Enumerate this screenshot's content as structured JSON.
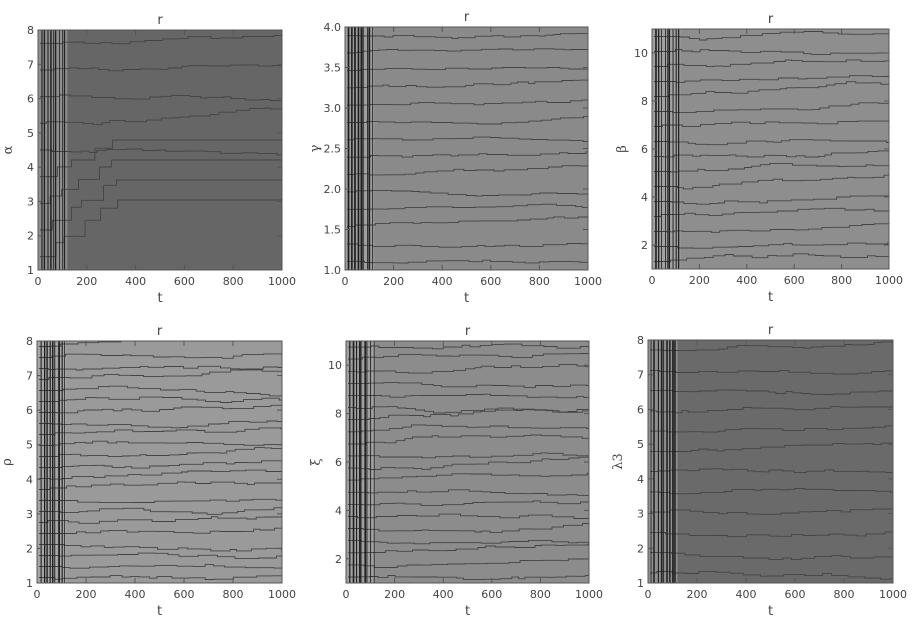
{
  "chart_data": [
    {
      "type": "heatmap",
      "title": "r",
      "xlabel": "t",
      "ylabel": "α",
      "xlim": [
        0,
        1000
      ],
      "ylim": [
        1,
        8
      ],
      "xticks": [
        "0",
        "200",
        "400",
        "600",
        "800",
        "1000"
      ],
      "yticks": [
        "1",
        "2",
        "3",
        "4",
        "5",
        "6",
        "7",
        "8"
      ]
    },
    {
      "type": "heatmap",
      "title": "r",
      "xlabel": "t",
      "ylabel": "γ",
      "xlim": [
        0,
        1000
      ],
      "ylim": [
        1,
        4
      ],
      "xticks": [
        "0",
        "200",
        "400",
        "600",
        "800",
        "1000"
      ],
      "yticks": [
        "1.0",
        "1.5",
        "2.0",
        "2.5",
        "3.0",
        "3.5",
        "4.0"
      ]
    },
    {
      "type": "heatmap",
      "title": "r",
      "xlabel": "t",
      "ylabel": "β",
      "xlim": [
        0,
        1000
      ],
      "ylim": [
        1,
        11
      ],
      "xticks": [
        "0",
        "200",
        "400",
        "600",
        "800",
        "1000"
      ],
      "yticks": [
        "2",
        "4",
        "6",
        "8",
        "10"
      ]
    },
    {
      "type": "heatmap",
      "title": "r",
      "xlabel": "t",
      "ylabel": "ρ",
      "xlim": [
        0,
        1000
      ],
      "ylim": [
        1,
        8
      ],
      "xticks": [
        "0",
        "200",
        "400",
        "600",
        "800",
        "1000"
      ],
      "yticks": [
        "1",
        "2",
        "3",
        "4",
        "5",
        "6",
        "7",
        "8"
      ]
    },
    {
      "type": "heatmap",
      "title": "r",
      "xlabel": "t",
      "ylabel": "ξ",
      "xlim": [
        0,
        1000
      ],
      "ylim": [
        1,
        11
      ],
      "xticks": [
        "0",
        "200",
        "400",
        "600",
        "800",
        "1000"
      ],
      "yticks": [
        "2",
        "4",
        "6",
        "8",
        "10"
      ]
    },
    {
      "type": "heatmap",
      "title": "r",
      "xlabel": "t",
      "ylabel": "λ3",
      "xlim": [
        0,
        1000
      ],
      "ylim": [
        1,
        8
      ],
      "xticks": [
        "0",
        "200",
        "400",
        "600",
        "800",
        "1000"
      ],
      "yticks": [
        "1",
        "2",
        "3",
        "4",
        "5",
        "6",
        "7",
        "8"
      ]
    }
  ]
}
